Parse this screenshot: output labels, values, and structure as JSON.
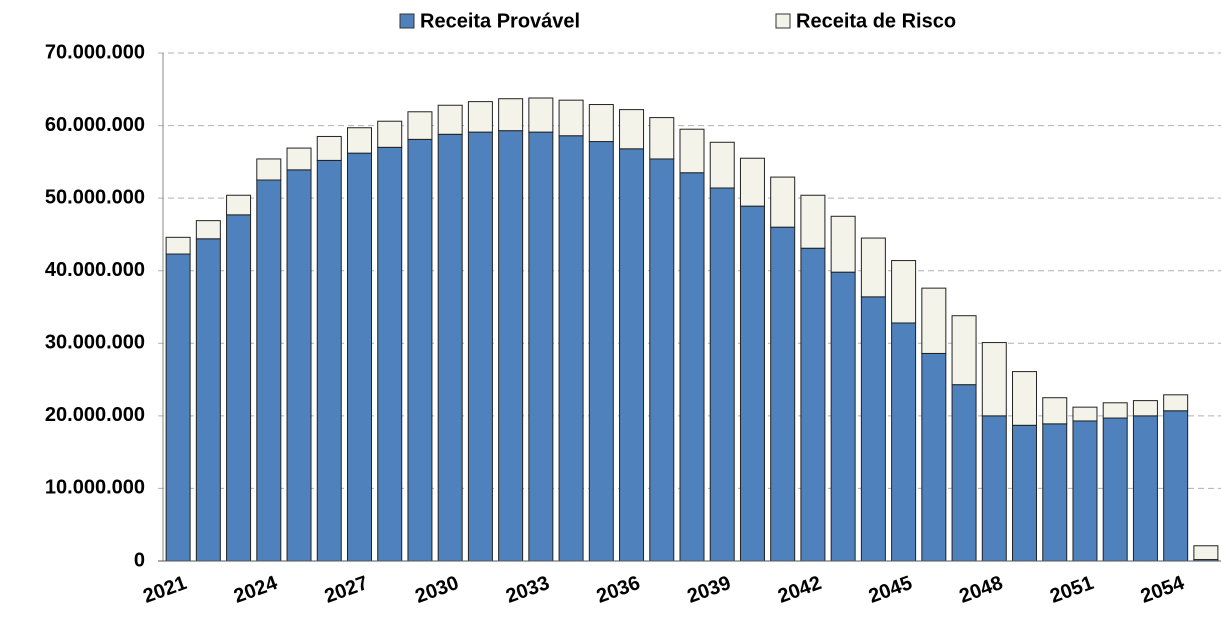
{
  "chart_data": {
    "type": "stacked_bar",
    "categories": [
      "2021",
      null,
      null,
      "2024",
      null,
      null,
      "2027",
      null,
      null,
      "2030",
      null,
      null,
      "2033",
      null,
      null,
      "2036",
      null,
      null,
      "2039",
      null,
      null,
      "2042",
      null,
      null,
      "2045",
      null,
      null,
      "2048",
      null,
      null,
      "2051",
      null,
      null,
      "2054",
      null
    ],
    "series": [
      {
        "name": "Receita Provável",
        "color": "#4f81bd",
        "values": [
          42300000,
          44400000,
          47700000,
          52500000,
          53900000,
          55200000,
          56200000,
          57000000,
          58100000,
          58800000,
          59100000,
          59300000,
          59100000,
          58600000,
          57800000,
          56800000,
          55400000,
          53500000,
          51400000,
          48900000,
          46000000,
          43100000,
          39800000,
          36400000,
          32800000,
          28600000,
          24300000,
          20000000,
          18700000,
          18900000,
          19300000,
          19700000,
          20000000,
          20700000,
          200000
        ]
      },
      {
        "name": "Receita de Risco",
        "color": "#f3f3ea",
        "values": [
          2300000,
          2500000,
          2700000,
          2900000,
          3000000,
          3300000,
          3500000,
          3600000,
          3800000,
          4000000,
          4200000,
          4400000,
          4700000,
          4900000,
          5100000,
          5400000,
          5700000,
          6000000,
          6300000,
          6600000,
          6900000,
          7300000,
          7700000,
          8100000,
          8600000,
          9000000,
          9500000,
          10100000,
          7400000,
          3600000,
          1900000,
          2100000,
          2100000,
          2200000,
          1900000
        ]
      }
    ],
    "ylim": [
      0,
      70000000
    ],
    "yticks": [
      0,
      {
        "value": 10000000,
        "label": "10.000.000"
      },
      {
        "value": 20000000,
        "label": "20.000.000"
      },
      {
        "value": 30000000,
        "label": "30.000.000"
      },
      {
        "value": 40000000,
        "label": "40.000.000"
      },
      {
        "value": 50000000,
        "label": "50.000.000"
      },
      {
        "value": 60000000,
        "label": "60.000.000"
      },
      {
        "value": 70000000,
        "label": "70.000.000"
      }
    ],
    "grid": true,
    "legend": "top"
  }
}
